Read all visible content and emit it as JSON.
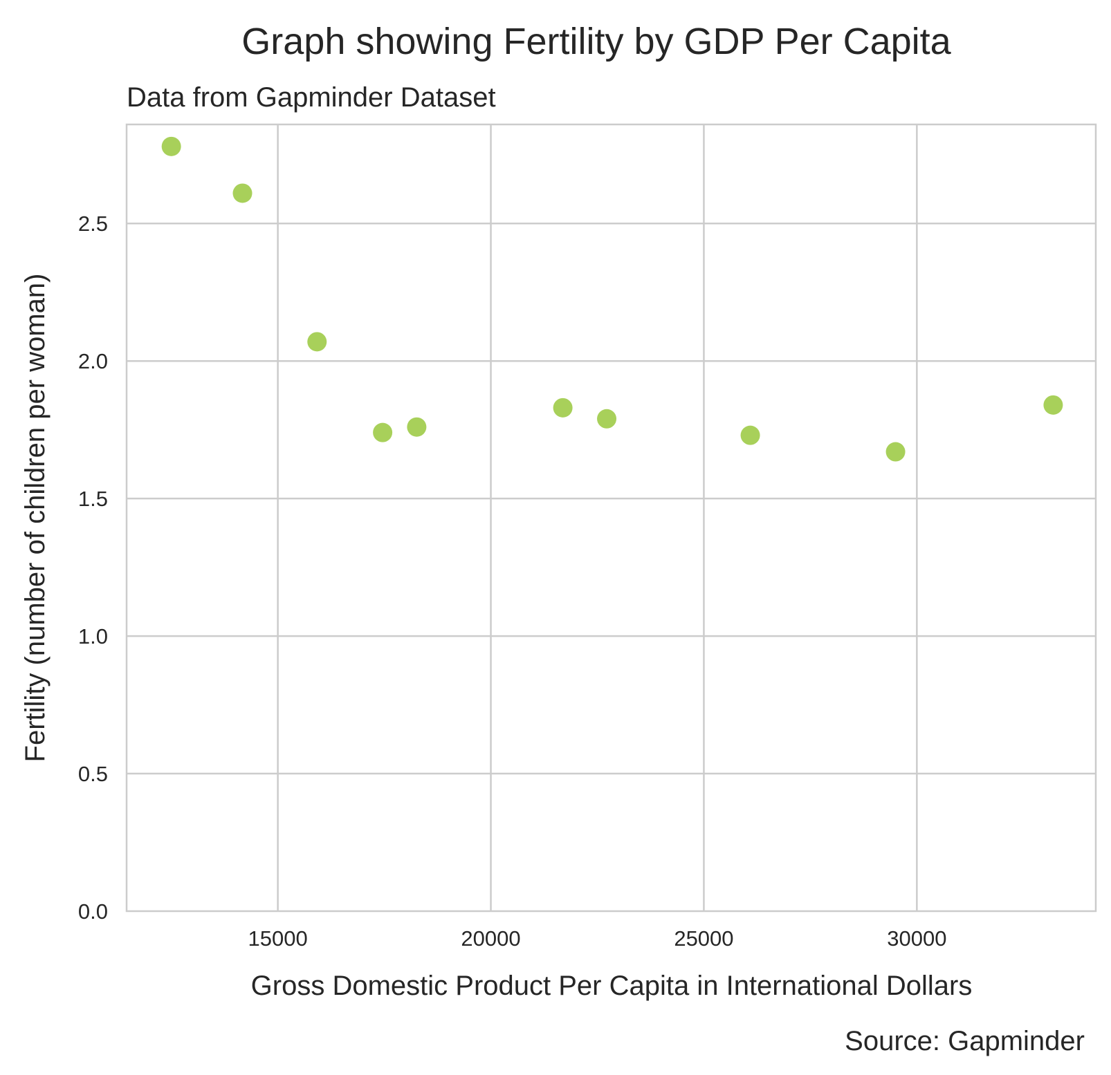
{
  "chart_data": {
    "type": "scatter",
    "title": "Graph showing Fertility by GDP Per Capita",
    "subtitle": "Data from Gapminder Dataset",
    "xlabel": "Gross Domestic Product Per Capita in International Dollars",
    "ylabel": "Fertility (number of children per woman)",
    "source": "Source: Gapminder",
    "xlim": [
      11450,
      34200
    ],
    "ylim": [
      0.0,
      2.86
    ],
    "xticks": [
      15000,
      20000,
      25000,
      30000
    ],
    "xtick_labels": [
      "15000",
      "20000",
      "25000",
      "30000"
    ],
    "yticks": [
      0.0,
      0.5,
      1.0,
      1.5,
      2.0,
      2.5
    ],
    "ytick_labels": [
      "0.0",
      "0.5",
      "1.0",
      "1.5",
      "2.0",
      "2.5"
    ],
    "grid": true,
    "point_color": "#a8d05a",
    "points": [
      {
        "x": 12500,
        "y": 2.78
      },
      {
        "x": 14170,
        "y": 2.61
      },
      {
        "x": 15920,
        "y": 2.07
      },
      {
        "x": 17460,
        "y": 1.74
      },
      {
        "x": 18260,
        "y": 1.76
      },
      {
        "x": 21690,
        "y": 1.83
      },
      {
        "x": 22720,
        "y": 1.79
      },
      {
        "x": 26090,
        "y": 1.73
      },
      {
        "x": 29500,
        "y": 1.67
      },
      {
        "x": 33200,
        "y": 1.84
      }
    ]
  }
}
